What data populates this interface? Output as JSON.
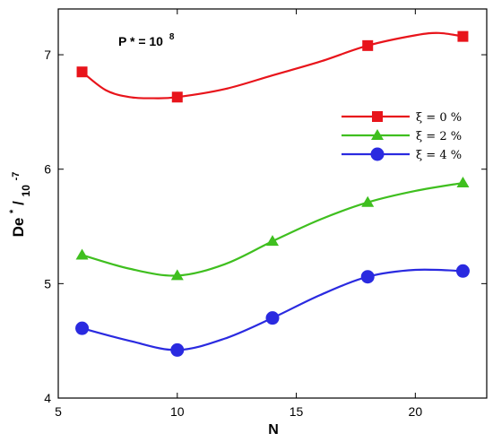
{
  "chart_data": {
    "type": "line",
    "annotation": {
      "base": "P * = 10",
      "exponent": "8"
    },
    "xlabel": "N",
    "ylabel": {
      "base": "De",
      "sup": "*",
      "sep": "/",
      "sub": "10",
      "sub_sup": "-7"
    },
    "xlim": [
      5,
      23
    ],
    "ylim": [
      4,
      7.4
    ],
    "xticks": [
      5,
      10,
      15,
      20
    ],
    "yticks": [
      4,
      5,
      6,
      7
    ],
    "grid": false,
    "legend_position": "right",
    "x": [
      6,
      10,
      14,
      18,
      22
    ],
    "series": [
      {
        "name": "ξ = 0 %",
        "color": "#e8141b",
        "marker": "square",
        "values": [
          6.85,
          6.63,
          null,
          7.08,
          7.16
        ],
        "curve": [
          [
            6,
            6.85
          ],
          [
            7,
            6.69
          ],
          [
            8,
            6.63
          ],
          [
            9,
            6.62
          ],
          [
            10,
            6.63
          ],
          [
            12,
            6.7
          ],
          [
            14,
            6.82
          ],
          [
            16,
            6.94
          ],
          [
            18,
            7.08
          ],
          [
            20,
            7.17
          ],
          [
            21,
            7.19
          ],
          [
            22,
            7.16
          ]
        ]
      },
      {
        "name": "ξ = 2 %",
        "color": "#3fbf1f",
        "marker": "triangle",
        "values": [
          5.25,
          5.07,
          5.37,
          5.71,
          5.88
        ],
        "curve": [
          [
            6,
            5.25
          ],
          [
            8,
            5.13
          ],
          [
            10,
            5.07
          ],
          [
            12,
            5.17
          ],
          [
            14,
            5.37
          ],
          [
            16,
            5.56
          ],
          [
            18,
            5.71
          ],
          [
            20,
            5.81
          ],
          [
            22,
            5.88
          ]
        ]
      },
      {
        "name": "ξ = 4 %",
        "color": "#2a2ae0",
        "marker": "circle",
        "values": [
          4.61,
          4.42,
          4.7,
          5.06,
          5.11
        ],
        "curve": [
          [
            6,
            4.61
          ],
          [
            8,
            4.5
          ],
          [
            10,
            4.42
          ],
          [
            12,
            4.52
          ],
          [
            14,
            4.7
          ],
          [
            16,
            4.9
          ],
          [
            18,
            5.06
          ],
          [
            20,
            5.12
          ],
          [
            22,
            5.11
          ]
        ]
      }
    ]
  }
}
